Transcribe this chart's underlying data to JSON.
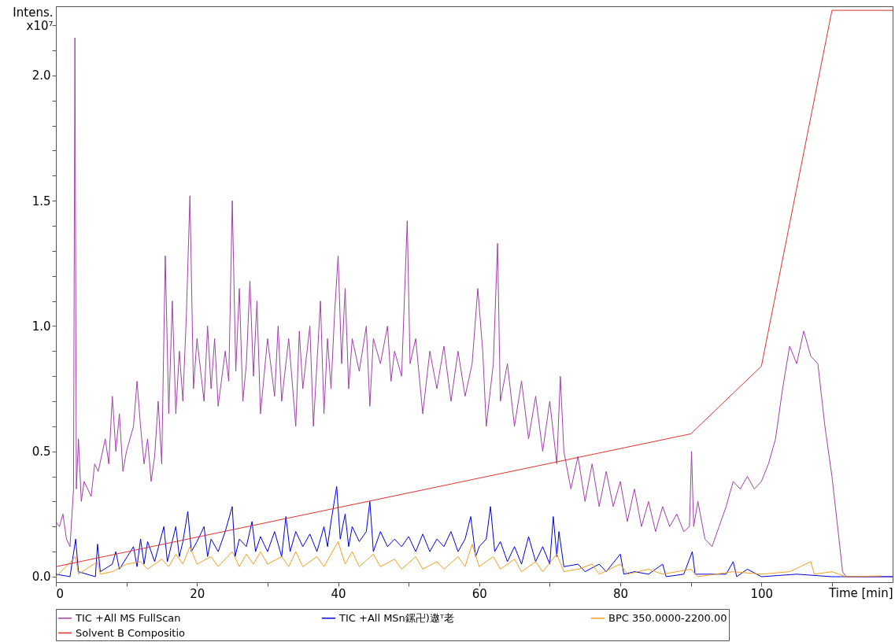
{
  "chart_data": {
    "type": "line",
    "xlabel": "Time [min]",
    "ylabel": "Intens.\nx10⁷",
    "legend": "bottom",
    "xlim": [
      0,
      118.6
    ],
    "ylim": [
      -0.022,
      2.276
    ],
    "xticks": [
      0,
      {
        "value": 10,
        "label": null
      },
      20,
      {
        "value": 30,
        "label": null
      },
      40,
      {
        "value": 50,
        "label": null
      },
      60,
      {
        "value": 70,
        "label": null
      },
      80,
      {
        "value": 90,
        "label": null
      },
      100,
      {
        "value": 110,
        "label": null
      }
    ],
    "yticks": [
      "0.0",
      {
        "value": 0.1,
        "label": null
      },
      {
        "value": 0.2,
        "label": null
      },
      {
        "value": 0.3,
        "label": null
      },
      {
        "value": 0.4,
        "label": null
      },
      {
        "value": 0.5,
        "label": "0.5"
      },
      {
        "value": 0.6,
        "label": null
      },
      {
        "value": 0.7,
        "label": null
      },
      {
        "value": 0.8,
        "label": null
      },
      {
        "value": 0.9,
        "label": null
      },
      {
        "value": 1.0,
        "label": "1.0"
      },
      {
        "value": 1.1,
        "label": null
      },
      {
        "value": 1.2,
        "label": null
      },
      {
        "value": 1.3,
        "label": null
      },
      {
        "value": 1.4,
        "label": null
      },
      {
        "value": 1.5,
        "label": "1.5"
      },
      {
        "value": 1.6,
        "label": null
      },
      {
        "value": 1.7,
        "label": null
      },
      {
        "value": 1.8,
        "label": null
      },
      {
        "value": 1.9,
        "label": null
      },
      {
        "value": 2.0,
        "label": "2.0"
      },
      {
        "value": 2.1,
        "label": null
      },
      {
        "value": 2.2,
        "label": null
      }
    ],
    "series": [
      {
        "name": "TIC +All MS FullScan",
        "color": "#a040a8",
        "x": [
          0,
          0.5,
          1,
          1.5,
          2,
          2.5,
          2.7,
          2.9,
          3.2,
          3.6,
          4,
          5,
          5.5,
          6,
          7,
          7.5,
          8,
          8.5,
          9,
          9.5,
          10,
          11,
          11.5,
          12,
          12.5,
          13,
          13.5,
          14,
          14.5,
          15,
          15.5,
          16,
          16.5,
          17,
          17.5,
          18,
          18.5,
          19,
          19.5,
          20,
          21,
          21.5,
          22,
          22.5,
          23,
          24,
          24.5,
          25,
          25.5,
          26,
          26.5,
          27,
          27.5,
          28,
          28.5,
          29,
          30,
          31,
          31.5,
          32,
          33,
          34,
          34.5,
          35,
          36,
          36.5,
          37,
          37.5,
          38,
          38.5,
          39,
          39.5,
          40,
          40.5,
          41,
          41.5,
          42,
          43,
          44,
          44.5,
          45,
          46,
          47,
          47.5,
          48,
          49,
          49.8,
          50.2,
          51,
          52,
          53,
          54,
          55,
          56,
          57,
          58,
          59,
          59.8,
          60.5,
          61,
          62,
          62.6,
          63,
          64,
          65,
          66,
          67,
          68,
          69,
          70,
          71,
          71.5,
          72,
          73,
          74,
          75,
          76,
          77,
          78,
          79,
          80,
          81,
          82,
          83,
          84,
          85,
          86,
          87,
          88,
          89,
          89.8,
          90.1,
          90.4,
          91,
          92,
          93,
          94,
          95,
          96,
          97,
          98,
          99,
          100,
          101,
          102,
          103,
          104,
          105,
          106,
          107,
          108,
          109,
          110,
          111,
          111.5,
          112,
          118.6
        ],
        "values": [
          0.22,
          0.2,
          0.25,
          0.15,
          0.12,
          0.35,
          2.15,
          0.35,
          0.55,
          0.3,
          0.38,
          0.32,
          0.45,
          0.42,
          0.55,
          0.45,
          0.72,
          0.5,
          0.65,
          0.42,
          0.5,
          0.6,
          0.78,
          0.6,
          0.45,
          0.55,
          0.38,
          0.48,
          0.7,
          0.45,
          1.28,
          0.65,
          1.1,
          0.65,
          0.9,
          0.7,
          1.05,
          1.52,
          0.75,
          0.95,
          0.7,
          1.0,
          0.75,
          0.95,
          0.68,
          0.9,
          0.78,
          1.5,
          0.82,
          1.15,
          0.7,
          0.85,
          1.18,
          0.8,
          1.1,
          0.65,
          0.95,
          0.72,
          1.0,
          0.7,
          0.95,
          0.6,
          0.98,
          0.75,
          1.0,
          0.6,
          0.85,
          1.1,
          0.65,
          0.95,
          0.75,
          1.05,
          1.28,
          0.85,
          1.15,
          0.75,
          0.95,
          0.82,
          1.0,
          0.68,
          0.95,
          0.85,
          1.0,
          0.78,
          0.9,
          0.8,
          1.42,
          0.85,
          0.95,
          0.65,
          0.9,
          0.75,
          0.92,
          0.7,
          0.9,
          0.72,
          0.85,
          1.15,
          0.9,
          0.6,
          0.85,
          1.33,
          0.7,
          0.85,
          0.6,
          0.78,
          0.55,
          0.72,
          0.5,
          0.7,
          0.45,
          0.8,
          0.5,
          0.35,
          0.48,
          0.3,
          0.45,
          0.28,
          0.42,
          0.28,
          0.38,
          0.22,
          0.35,
          0.2,
          0.3,
          0.18,
          0.28,
          0.2,
          0.25,
          0.18,
          0.2,
          0.5,
          0.2,
          0.3,
          0.15,
          0.12,
          0.2,
          0.28,
          0.38,
          0.35,
          0.4,
          0.35,
          0.38,
          0.45,
          0.55,
          0.75,
          0.92,
          0.85,
          0.98,
          0.88,
          0.85,
          0.6,
          0.4,
          0.15,
          0.02,
          0.0,
          0.0
        ]
      },
      {
        "name": "TIC +All MSn鏍卍)遨ᵀ老",
        "color": "#0000e0",
        "x": [
          0,
          2,
          2.8,
          3.2,
          5.6,
          5.9,
          6.3,
          8,
          8.5,
          9,
          11,
          11.5,
          12,
          12.5,
          13,
          14,
          15.3,
          15.8,
          17,
          17.5,
          18,
          18.7,
          19.2,
          20,
          21,
          21.5,
          22,
          23,
          24,
          25,
          25.4,
          26,
          27,
          27.8,
          28.3,
          29,
          30,
          31,
          32,
          32.6,
          33.2,
          34,
          35,
          36,
          37,
          38,
          38.5,
          39,
          39.8,
          40.3,
          41,
          41.5,
          42,
          43,
          44,
          44.5,
          45,
          46,
          47,
          48,
          49,
          50,
          51,
          52,
          53,
          54,
          55,
          56,
          57,
          58,
          58.8,
          59.5,
          60,
          61,
          61.6,
          62.2,
          63,
          64,
          65,
          66,
          67,
          68,
          69,
          70,
          70.5,
          71,
          71.3,
          72,
          74,
          75,
          77,
          78,
          80,
          80.5,
          82,
          84,
          86,
          86.5,
          89,
          90.2,
          90.6,
          95,
          96,
          96.5,
          98,
          100,
          105,
          110,
          118.6
        ],
        "values": [
          0.01,
          0.0,
          0.15,
          0.02,
          0.0,
          0.13,
          0.02,
          0.05,
          0.1,
          0.03,
          0.12,
          0.04,
          0.15,
          0.05,
          0.14,
          0.06,
          0.2,
          0.06,
          0.2,
          0.08,
          0.14,
          0.26,
          0.1,
          0.14,
          0.2,
          0.08,
          0.15,
          0.1,
          0.18,
          0.28,
          0.08,
          0.15,
          0.12,
          0.22,
          0.1,
          0.16,
          0.1,
          0.18,
          0.08,
          0.24,
          0.1,
          0.18,
          0.12,
          0.17,
          0.1,
          0.2,
          0.12,
          0.22,
          0.36,
          0.15,
          0.25,
          0.12,
          0.2,
          0.14,
          0.18,
          0.3,
          0.1,
          0.18,
          0.12,
          0.15,
          0.12,
          0.16,
          0.1,
          0.17,
          0.1,
          0.15,
          0.12,
          0.18,
          0.1,
          0.15,
          0.24,
          0.08,
          0.12,
          0.15,
          0.28,
          0.1,
          0.14,
          0.06,
          0.12,
          0.05,
          0.16,
          0.06,
          0.12,
          0.05,
          0.24,
          0.08,
          0.18,
          0.04,
          0.05,
          0.02,
          0.05,
          0.02,
          0.09,
          0.01,
          0.02,
          0.01,
          0.05,
          0.0,
          0.01,
          0.1,
          0.01,
          0.01,
          0.06,
          0.0,
          0.03,
          0.0,
          0.01,
          0.0,
          0.0
        ]
      },
      {
        "name": "BPC 350.0000-2200.00",
        "color": "#f0a020",
        "x": [
          0,
          2.8,
          3.2,
          5.9,
          6.3,
          8,
          10,
          12,
          13,
          15,
          16,
          17,
          18,
          19,
          20,
          22,
          23,
          25,
          26,
          27,
          28,
          29,
          30,
          32,
          33,
          34,
          35,
          37,
          38,
          40,
          41,
          42,
          43,
          45,
          46,
          48,
          49,
          51,
          52,
          54,
          55,
          57,
          58,
          59,
          60,
          62,
          63,
          65,
          66,
          68,
          69,
          71,
          72,
          74,
          76,
          77,
          80,
          81,
          84,
          86,
          90,
          91,
          96,
          100,
          104,
          107,
          107.5,
          110,
          112,
          117
        ],
        "values": [
          0.0,
          0.08,
          0.01,
          0.06,
          0.01,
          0.02,
          0.05,
          0.06,
          0.03,
          0.07,
          0.04,
          0.09,
          0.05,
          0.12,
          0.05,
          0.08,
          0.04,
          0.1,
          0.04,
          0.09,
          0.05,
          0.1,
          0.05,
          0.08,
          0.04,
          0.1,
          0.04,
          0.08,
          0.04,
          0.14,
          0.05,
          0.1,
          0.04,
          0.09,
          0.04,
          0.07,
          0.03,
          0.08,
          0.03,
          0.06,
          0.03,
          0.08,
          0.04,
          0.13,
          0.04,
          0.08,
          0.03,
          0.07,
          0.02,
          0.06,
          0.02,
          0.09,
          0.02,
          0.03,
          0.05,
          0.01,
          0.05,
          0.01,
          0.03,
          0.01,
          0.03,
          0.0,
          0.02,
          0.01,
          0.02,
          0.06,
          0.01,
          0.02,
          0.0,
          0.003
        ]
      },
      {
        "name": "Solvent B Compositio",
        "color": "#e03030",
        "x": [
          0,
          90,
          100,
          110,
          118.6
        ],
        "values": [
          0.04,
          0.57,
          0.84,
          2.26,
          2.26
        ]
      }
    ]
  }
}
